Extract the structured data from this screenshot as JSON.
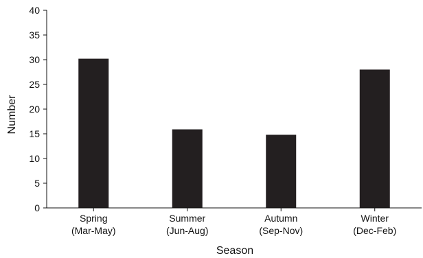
{
  "chart_data": {
    "type": "bar",
    "categories": [
      [
        "Spring",
        "(Mar-May)"
      ],
      [
        "Summer",
        "(Jun-Aug)"
      ],
      [
        "Autumn",
        "(Sep-Nov)"
      ],
      [
        "Winter",
        "(Dec-Feb)"
      ]
    ],
    "values": [
      30.2,
      15.9,
      14.8,
      28.0
    ],
    "xlabel": "Season",
    "ylabel": "Number",
    "ylim": [
      0,
      40
    ],
    "yticks": [
      0,
      5,
      10,
      15,
      20,
      25,
      30,
      35,
      40
    ],
    "bar_color": "#231f20",
    "grid": false
  }
}
